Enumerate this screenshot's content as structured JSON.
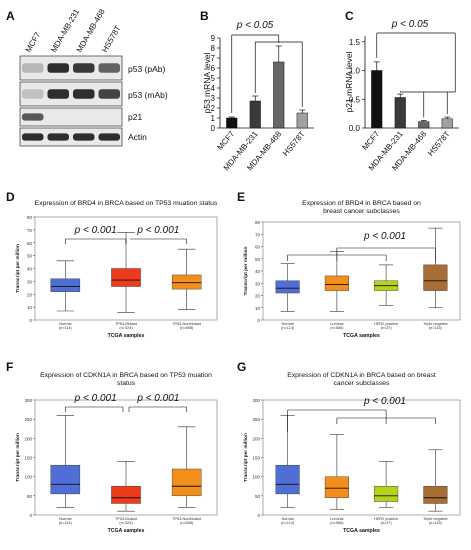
{
  "panels": {
    "A": {
      "letter": "A",
      "lanes": [
        "MCF7",
        "MDA-MB-231",
        "MDA-MB-468",
        "HS578T"
      ],
      "bands": [
        "p53 (pAb)",
        "p53 (mAb)",
        "p21",
        "Actin"
      ],
      "band_intensity": [
        [
          0.25,
          0.9,
          0.85,
          0.65
        ],
        [
          0.2,
          0.9,
          0.9,
          0.8
        ],
        [
          0.7,
          0.0,
          0.0,
          0.0
        ],
        [
          0.9,
          0.9,
          0.9,
          0.9
        ]
      ]
    },
    "B": {
      "letter": "B",
      "pvalue": "p < 0.05",
      "ylabel": "p53 mRNA level",
      "categories": [
        "MCF7",
        "MDA-MB-231",
        "MDA-MB-468",
        "HS578T"
      ],
      "values": [
        1,
        2.7,
        6.6,
        1.5
      ],
      "errors": [
        0.1,
        0.5,
        1.6,
        0.3
      ],
      "yticks": [
        "0",
        "1",
        "2",
        "3",
        "4",
        "5",
        "6",
        "7",
        "8",
        "9"
      ],
      "ylim": [
        0,
        9
      ],
      "colors": [
        "#111111",
        "#3a3a3a",
        "#666666",
        "#a0a0a0"
      ]
    },
    "C": {
      "letter": "C",
      "pvalue": "p < 0.05",
      "ylabel": "p21 mRNA level",
      "categories": [
        "MCF7",
        "MDA-MB-231",
        "MDA-MB-468",
        "HS578T"
      ],
      "values": [
        1.0,
        0.53,
        0.11,
        0.16
      ],
      "errors": [
        0.15,
        0.06,
        0.02,
        0.03
      ],
      "yticks": [
        "0.0",
        "0.5",
        "1.0",
        "1.5"
      ],
      "ylim": [
        0,
        1.6
      ],
      "colors": [
        "#111111",
        "#3a3a3a",
        "#666666",
        "#a0a0a0"
      ]
    },
    "D": {
      "letter": "D",
      "title": "Expression of BRD4 in BRCA based on TP53 muation status",
      "xlabel": "TCGA samples",
      "ylabel": "Transcript per million",
      "yticks": [
        "0",
        "10",
        "20",
        "30",
        "40",
        "50",
        "60",
        "70",
        "80"
      ],
      "ylim": [
        0,
        80
      ],
      "pvals": [
        "p < 0.001",
        "p < 0.001"
      ],
      "groups": [
        {
          "name": "Normal",
          "n": "(n=114)",
          "color": "#4f6fd6",
          "min": 7,
          "q1": 22,
          "med": 26,
          "q3": 32,
          "max": 46
        },
        {
          "name": "TP53-Mutant",
          "n": "(n=324)",
          "color": "#ee3b1c",
          "min": 6,
          "q1": 26,
          "med": 31,
          "q3": 40,
          "max": 68
        },
        {
          "name": "TP53-NonMutant",
          "n": "(n=698)",
          "color": "#f28e1c",
          "min": 8,
          "q1": 24,
          "med": 29,
          "q3": 35,
          "max": 55
        }
      ]
    },
    "E": {
      "letter": "E",
      "title": "Expression of BRD4 in BRCA based on breast cancer subclasses",
      "xlabel": "TCGA samples",
      "ylabel": "Transcript per million",
      "yticks": [
        "0",
        "10",
        "20",
        "30",
        "40",
        "50",
        "60",
        "70",
        "80"
      ],
      "ylim": [
        0,
        80
      ],
      "pvals": [
        "p < 0.001"
      ],
      "groups": [
        {
          "name": "Normal",
          "n": "(n=114)",
          "color": "#4f6fd6",
          "min": 7,
          "q1": 22,
          "med": 26,
          "q3": 32,
          "max": 46
        },
        {
          "name": "Luminal",
          "n": "(n=566)",
          "color": "#f28e1c",
          "min": 7,
          "q1": 24,
          "med": 29,
          "q3": 36,
          "max": 56
        },
        {
          "name": "HER2 positive",
          "n": "(n=37)",
          "color": "#b6d21b",
          "min": 12,
          "q1": 24,
          "med": 28,
          "q3": 32,
          "max": 45
        },
        {
          "name": "Triple negative",
          "n": "(n=116)",
          "color": "#a86e35",
          "min": 10,
          "q1": 24,
          "med": 32,
          "q3": 45,
          "max": 75
        }
      ]
    },
    "F": {
      "letter": "F",
      "title": "Expression of CDKN1A in BRCA based on TP53 muation status",
      "xlabel": "TCGA samples",
      "ylabel": "Transcript per million",
      "yticks": [
        "0",
        "50",
        "100",
        "150",
        "200",
        "250",
        "300"
      ],
      "ylim": [
        0,
        300
      ],
      "pvals": [
        "p < 0.001",
        "p < 0.001"
      ],
      "groups": [
        {
          "name": "Normal",
          "n": "(n=114)",
          "color": "#4f6fd6",
          "min": 20,
          "q1": 55,
          "med": 80,
          "q3": 130,
          "max": 260
        },
        {
          "name": "TP53-Mutant",
          "n": "(n=324)",
          "color": "#ee3b1c",
          "min": 10,
          "q1": 30,
          "med": 45,
          "q3": 75,
          "max": 140
        },
        {
          "name": "TP53-NonMutant",
          "n": "(n=698)",
          "color": "#f28e1c",
          "min": 20,
          "q1": 50,
          "med": 75,
          "q3": 120,
          "max": 230
        }
      ]
    },
    "G": {
      "letter": "G",
      "title": "Expression of CDKN1A in BRCA based on breast cancer subclasses",
      "xlabel": "TCGA samples",
      "ylabel": "Transcript per million",
      "yticks": [
        "0",
        "50",
        "100",
        "150",
        "200",
        "250",
        "300"
      ],
      "ylim": [
        0,
        300
      ],
      "pvals": [
        "p < 0.001"
      ],
      "groups": [
        {
          "name": "Normal",
          "n": "(n=114)",
          "color": "#4f6fd6",
          "min": 20,
          "q1": 55,
          "med": 80,
          "q3": 130,
          "max": 260
        },
        {
          "name": "Luminal",
          "n": "(n=566)",
          "color": "#f28e1c",
          "min": 15,
          "q1": 45,
          "med": 70,
          "q3": 100,
          "max": 210
        },
        {
          "name": "HER2 positive",
          "n": "(n=37)",
          "color": "#b6d21b",
          "min": 20,
          "q1": 35,
          "med": 50,
          "q3": 75,
          "max": 140
        },
        {
          "name": "Triple negative",
          "n": "(n=116)",
          "color": "#a86e35",
          "min": 10,
          "q1": 30,
          "med": 45,
          "q3": 75,
          "max": 170
        }
      ]
    }
  },
  "chart_data": [
    {
      "type": "bar",
      "panel": "B",
      "categories": [
        "MCF7",
        "MDA-MB-231",
        "MDA-MB-468",
        "HS578T"
      ],
      "values": [
        1,
        2.7,
        6.6,
        1.5
      ],
      "ylabel": "p53 mRNA level",
      "ylim": [
        0,
        9
      ]
    },
    {
      "type": "bar",
      "panel": "C",
      "categories": [
        "MCF7",
        "MDA-MB-231",
        "MDA-MB-468",
        "HS578T"
      ],
      "values": [
        1.0,
        0.53,
        0.11,
        0.16
      ],
      "ylabel": "p21 mRNA level",
      "ylim": [
        0,
        1.6
      ]
    },
    {
      "type": "box",
      "panel": "D",
      "categories": [
        "Normal",
        "TP53-Mutant",
        "TP53-NonMutant"
      ],
      "medians": [
        26,
        31,
        29
      ],
      "ylabel": "Transcript per million",
      "xlabel": "TCGA samples",
      "ylim": [
        0,
        80
      ]
    },
    {
      "type": "box",
      "panel": "E",
      "categories": [
        "Normal",
        "Luminal",
        "HER2 positive",
        "Triple negative"
      ],
      "medians": [
        26,
        29,
        28,
        32
      ],
      "ylabel": "Transcript per million",
      "xlabel": "TCGA samples",
      "ylim": [
        0,
        80
      ]
    },
    {
      "type": "box",
      "panel": "F",
      "categories": [
        "Normal",
        "TP53-Mutant",
        "TP53-NonMutant"
      ],
      "medians": [
        80,
        45,
        75
      ],
      "ylabel": "Transcript per million",
      "xlabel": "TCGA samples",
      "ylim": [
        0,
        300
      ]
    },
    {
      "type": "box",
      "panel": "G",
      "categories": [
        "Normal",
        "Luminal",
        "HER2 positive",
        "Triple negative"
      ],
      "medians": [
        80,
        70,
        50,
        45
      ],
      "ylabel": "Transcript per million",
      "xlabel": "TCGA samples",
      "ylim": [
        0,
        300
      ]
    }
  ]
}
